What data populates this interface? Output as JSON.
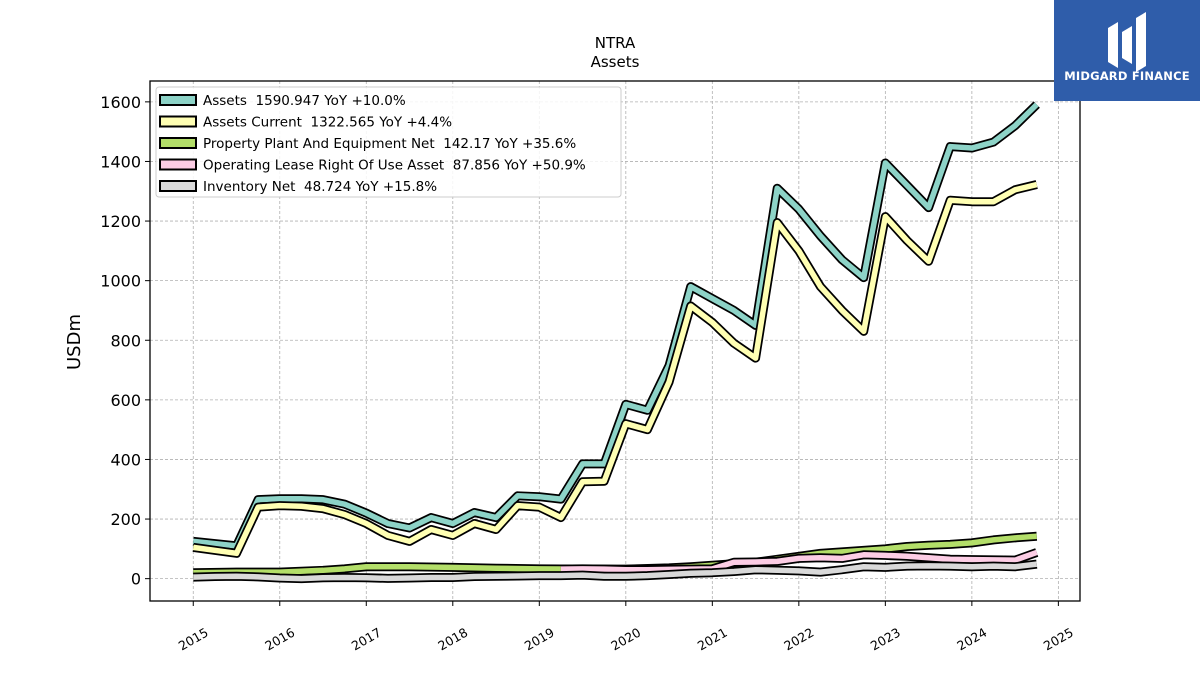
{
  "logo": {
    "text": "MIDGARD FINANCE"
  },
  "chart_data": {
    "type": "line",
    "title": "NTRA",
    "subtitle": "Assets",
    "xlabel": "",
    "ylabel": "USDm",
    "xlim": [
      2014.5,
      2025.25
    ],
    "ylim": [
      -75,
      1670
    ],
    "x_ticks": [
      2015,
      2016,
      2017,
      2018,
      2019,
      2020,
      2021,
      2022,
      2023,
      2024,
      2025
    ],
    "y_ticks": [
      0,
      200,
      400,
      600,
      800,
      1000,
      1200,
      1400,
      1600
    ],
    "grid": true,
    "legend_position": "top-left",
    "series": [
      {
        "name": "Assets",
        "legend": "Assets  1590.947 YoY +10.0%",
        "color": "#8dd3c7",
        "points": [
          [
            2015.0,
            125
          ],
          [
            2015.5,
            110
          ],
          [
            2015.75,
            265
          ],
          [
            2016.0,
            268
          ],
          [
            2016.25,
            268
          ],
          [
            2016.5,
            265
          ],
          [
            2016.75,
            250
          ],
          [
            2017.0,
            220
          ],
          [
            2017.25,
            185
          ],
          [
            2017.5,
            170
          ],
          [
            2017.75,
            205
          ],
          [
            2018.0,
            185
          ],
          [
            2018.25,
            222
          ],
          [
            2018.5,
            205
          ],
          [
            2018.75,
            278
          ],
          [
            2019.0,
            275
          ],
          [
            2019.25,
            267
          ],
          [
            2019.5,
            385
          ],
          [
            2019.75,
            385
          ],
          [
            2020.0,
            585
          ],
          [
            2020.25,
            565
          ],
          [
            2020.5,
            715
          ],
          [
            2020.75,
            980
          ],
          [
            2021.0,
            940
          ],
          [
            2021.25,
            900
          ],
          [
            2021.5,
            850
          ],
          [
            2021.75,
            1310
          ],
          [
            2022.0,
            1240
          ],
          [
            2022.25,
            1150
          ],
          [
            2022.5,
            1070
          ],
          [
            2022.75,
            1010
          ],
          [
            2023.0,
            1395
          ],
          [
            2023.25,
            1320
          ],
          [
            2023.5,
            1245
          ],
          [
            2023.75,
            1450
          ],
          [
            2024.0,
            1445
          ],
          [
            2024.25,
            1465
          ],
          [
            2024.5,
            1520
          ],
          [
            2024.75,
            1591
          ]
        ]
      },
      {
        "name": "Assets Current",
        "legend": "Assets Current  1322.565 YoY +4.4%",
        "color": "#ffffb3",
        "points": [
          [
            2015.0,
            105
          ],
          [
            2015.5,
            85
          ],
          [
            2015.75,
            240
          ],
          [
            2016.0,
            245
          ],
          [
            2016.25,
            243
          ],
          [
            2016.5,
            235
          ],
          [
            2016.75,
            215
          ],
          [
            2017.0,
            185
          ],
          [
            2017.25,
            145
          ],
          [
            2017.5,
            125
          ],
          [
            2017.75,
            165
          ],
          [
            2018.0,
            145
          ],
          [
            2018.25,
            185
          ],
          [
            2018.5,
            165
          ],
          [
            2018.75,
            245
          ],
          [
            2019.0,
            240
          ],
          [
            2019.25,
            205
          ],
          [
            2019.5,
            325
          ],
          [
            2019.75,
            327
          ],
          [
            2020.0,
            520
          ],
          [
            2020.25,
            500
          ],
          [
            2020.5,
            660
          ],
          [
            2020.75,
            915
          ],
          [
            2021.0,
            860
          ],
          [
            2021.25,
            790
          ],
          [
            2021.5,
            740
          ],
          [
            2021.75,
            1195
          ],
          [
            2022.0,
            1100
          ],
          [
            2022.25,
            980
          ],
          [
            2022.5,
            900
          ],
          [
            2022.75,
            830
          ],
          [
            2023.0,
            1215
          ],
          [
            2023.25,
            1135
          ],
          [
            2023.5,
            1065
          ],
          [
            2023.75,
            1270
          ],
          [
            2024.0,
            1265
          ],
          [
            2024.25,
            1265
          ],
          [
            2024.5,
            1305
          ],
          [
            2024.75,
            1322.565
          ]
        ]
      },
      {
        "name": "Property Plant And Equipment Net",
        "legend": "Property Plant And Equipment Net  142.17 YoY +35.6%",
        "color": "#b3de69",
        "points": [
          [
            2015.0,
            20
          ],
          [
            2015.5,
            22
          ],
          [
            2016.0,
            22
          ],
          [
            2016.5,
            28
          ],
          [
            2016.75,
            33
          ],
          [
            2017.0,
            40
          ],
          [
            2017.5,
            40
          ],
          [
            2018.0,
            38
          ],
          [
            2018.5,
            35
          ],
          [
            2019.0,
            33
          ],
          [
            2019.5,
            32
          ],
          [
            2020.0,
            32
          ],
          [
            2020.5,
            36
          ],
          [
            2020.75,
            40
          ],
          [
            2021.0,
            45
          ],
          [
            2021.5,
            55
          ],
          [
            2021.75,
            65
          ],
          [
            2022.0,
            75
          ],
          [
            2022.25,
            85
          ],
          [
            2022.5,
            90
          ],
          [
            2022.75,
            95
          ],
          [
            2023.0,
            100
          ],
          [
            2023.25,
            108
          ],
          [
            2023.5,
            112
          ],
          [
            2023.75,
            115
          ],
          [
            2024.0,
            120
          ],
          [
            2024.25,
            130
          ],
          [
            2024.5,
            137
          ],
          [
            2024.75,
            142.17
          ]
        ]
      },
      {
        "name": "Operating Lease Right Of Use Asset",
        "legend": "Operating Lease Right Of Use Asset  87.856 YoY +50.9%",
        "color": "#fccde5",
        "points": [
          [
            2019.25,
            32
          ],
          [
            2019.5,
            33
          ],
          [
            2019.75,
            32
          ],
          [
            2020.0,
            30
          ],
          [
            2020.25,
            30
          ],
          [
            2020.5,
            31
          ],
          [
            2020.75,
            32
          ],
          [
            2021.0,
            33
          ],
          [
            2021.25,
            55
          ],
          [
            2021.5,
            56
          ],
          [
            2021.75,
            58
          ],
          [
            2022.0,
            68
          ],
          [
            2022.25,
            70
          ],
          [
            2022.5,
            68
          ],
          [
            2022.75,
            80
          ],
          [
            2023.0,
            78
          ],
          [
            2023.25,
            75
          ],
          [
            2023.5,
            70
          ],
          [
            2023.75,
            65
          ],
          [
            2024.0,
            64
          ],
          [
            2024.25,
            63
          ],
          [
            2024.5,
            62
          ],
          [
            2024.75,
            87.856
          ]
        ]
      },
      {
        "name": "Inventory Net",
        "legend": "Inventory Net  48.724 YoY +15.8%",
        "color": "#d9d9d9",
        "points": [
          [
            2015.0,
            5
          ],
          [
            2015.25,
            7
          ],
          [
            2015.5,
            8
          ],
          [
            2015.75,
            6
          ],
          [
            2016.0,
            2
          ],
          [
            2016.25,
            0
          ],
          [
            2016.5,
            3
          ],
          [
            2016.75,
            4
          ],
          [
            2017.0,
            3
          ],
          [
            2017.25,
            1
          ],
          [
            2017.5,
            2
          ],
          [
            2017.75,
            4
          ],
          [
            2018.0,
            4
          ],
          [
            2018.25,
            7
          ],
          [
            2018.5,
            8
          ],
          [
            2018.75,
            9
          ],
          [
            2019.0,
            10
          ],
          [
            2019.25,
            10
          ],
          [
            2019.5,
            12
          ],
          [
            2019.75,
            8
          ],
          [
            2020.0,
            8
          ],
          [
            2020.25,
            10
          ],
          [
            2020.5,
            14
          ],
          [
            2020.75,
            18
          ],
          [
            2021.0,
            20
          ],
          [
            2021.25,
            24
          ],
          [
            2021.5,
            30
          ],
          [
            2021.75,
            28
          ],
          [
            2022.0,
            26
          ],
          [
            2022.25,
            22
          ],
          [
            2022.5,
            30
          ],
          [
            2022.75,
            40
          ],
          [
            2023.0,
            38
          ],
          [
            2023.25,
            42
          ],
          [
            2023.5,
            43
          ],
          [
            2023.75,
            42
          ],
          [
            2024.0,
            40
          ],
          [
            2024.25,
            42
          ],
          [
            2024.5,
            40
          ],
          [
            2024.75,
            48.724
          ]
        ]
      }
    ]
  }
}
